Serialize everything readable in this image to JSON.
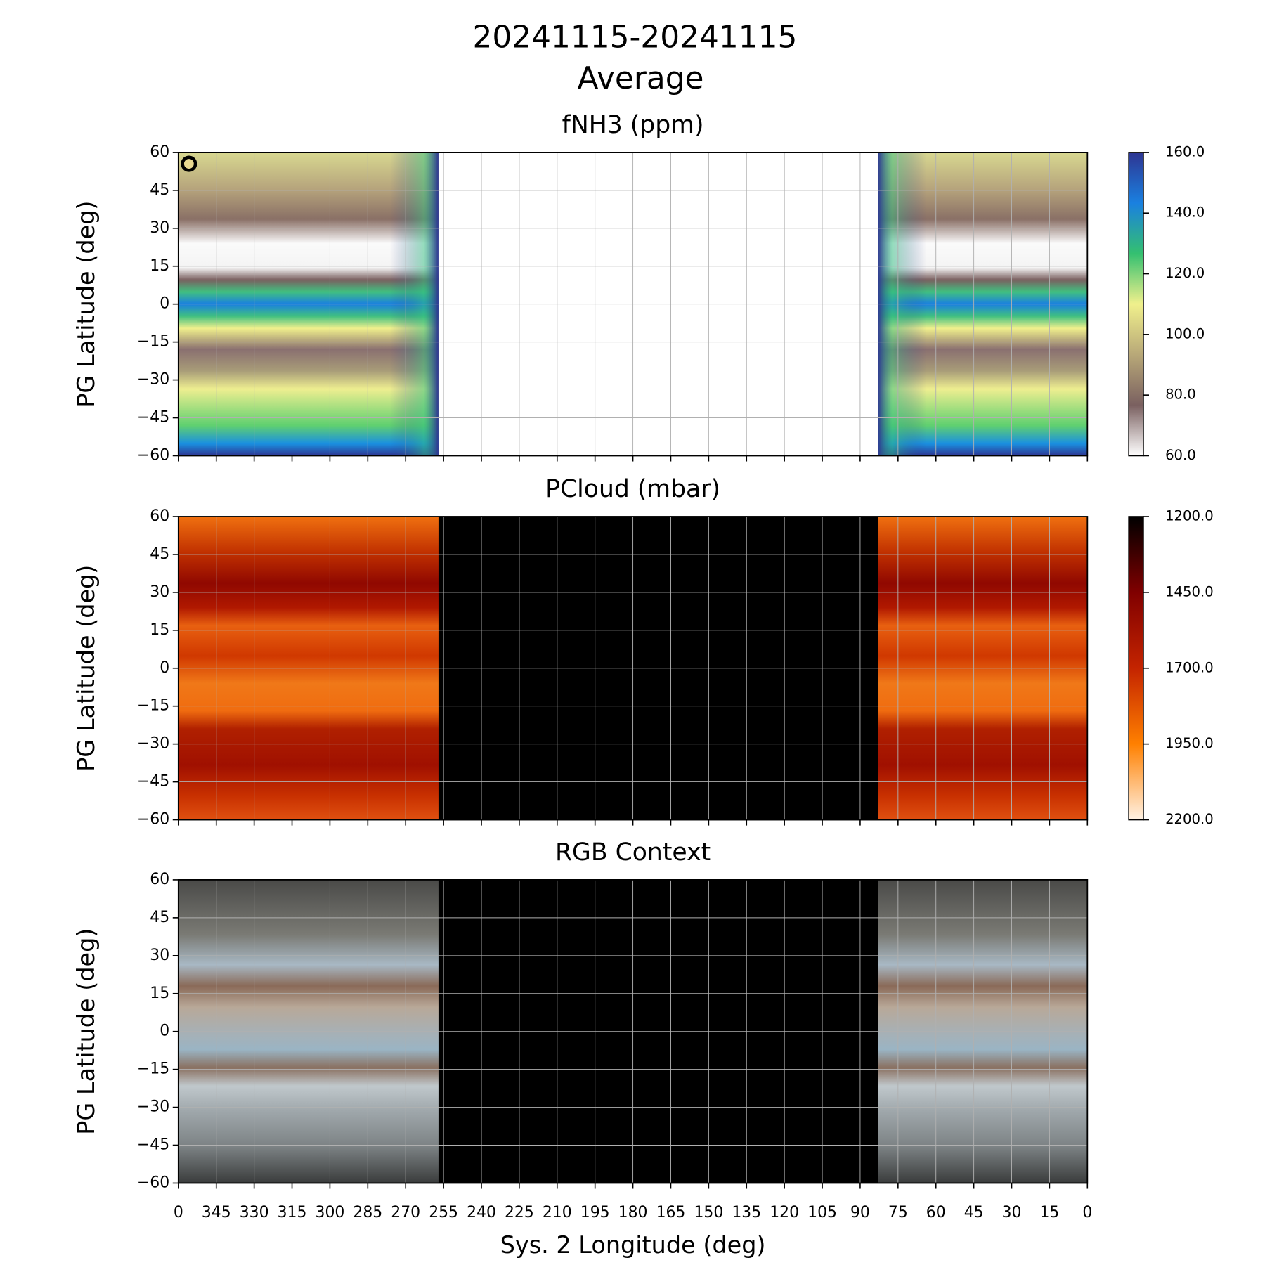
{
  "title": "20241115-20241115",
  "subtitle": "Average",
  "chart_data": [
    {
      "type": "heatmap",
      "title": "fNH3 (ppm)",
      "ylabel": "PG Latitude (deg)",
      "background": "#ffffff",
      "grid": true,
      "coverage": [
        [
          360,
          257
        ],
        [
          83,
          0
        ]
      ],
      "ylim": [
        -60,
        60
      ],
      "yticks": [
        {
          "value": -60,
          "label": "−60"
        },
        {
          "value": -45,
          "label": "−45"
        },
        {
          "value": -30,
          "label": "−30"
        },
        {
          "value": -15,
          "label": "−15"
        },
        0,
        15,
        30,
        45,
        60
      ],
      "colorbar": {
        "clim": [
          60,
          160
        ],
        "colors": [
          "#ffffff",
          "#7a6060",
          "#b8a878",
          "#f0f08c",
          "#34c070",
          "#1a80e0",
          "#2e3592"
        ],
        "ticks": [
          {
            "value": 60,
            "label": "60.0"
          },
          {
            "value": 80,
            "label": "80.0"
          },
          {
            "value": 100,
            "label": "100.0"
          },
          {
            "value": 120,
            "label": "120.0"
          },
          {
            "value": 140,
            "label": "140.0"
          },
          {
            "value": 160,
            "label": "160.0"
          }
        ]
      }
    },
    {
      "type": "heatmap",
      "title": "PCloud (mbar)",
      "ylabel": "PG Latitude (deg)",
      "background": "#000000",
      "grid": true,
      "coverage": [
        [
          360,
          257
        ],
        [
          83,
          0
        ]
      ],
      "ylim": [
        -60,
        60
      ],
      "yticks": [
        {
          "value": -60,
          "label": "−60"
        },
        {
          "value": -45,
          "label": "−45"
        },
        {
          "value": -30,
          "label": "−30"
        },
        {
          "value": -15,
          "label": "−15"
        },
        0,
        15,
        30,
        45,
        60
      ],
      "colorbar": {
        "clim": [
          2200,
          1200
        ],
        "colors": [
          "#fff2e4",
          "#ff8000",
          "#c42400",
          "#800000",
          "#000000"
        ],
        "ticks": [
          {
            "value": 2200,
            "label": "2200.0"
          },
          {
            "value": 1950,
            "label": "1950.0"
          },
          {
            "value": 1700,
            "label": "1700.0"
          },
          {
            "value": 1450,
            "label": "1450.0"
          },
          {
            "value": 1200,
            "label": "1200.0"
          }
        ]
      }
    },
    {
      "type": "image",
      "title": "RGB Context",
      "ylabel": "PG Latitude (deg)",
      "xlabel": "Sys. 2 Longitude (deg)",
      "background": "#000000",
      "grid": true,
      "coverage": [
        [
          360,
          257
        ],
        [
          83,
          0
        ]
      ],
      "xlim": [
        360,
        0
      ],
      "xticks": [
        {
          "value": 360,
          "label": "0"
        },
        345,
        330,
        315,
        300,
        285,
        270,
        255,
        240,
        225,
        210,
        195,
        180,
        165,
        150,
        135,
        120,
        105,
        90,
        75,
        60,
        45,
        30,
        15,
        0
      ],
      "ylim": [
        -60,
        60
      ],
      "yticks": [
        {
          "value": -60,
          "label": "−60"
        },
        {
          "value": -45,
          "label": "−45"
        },
        {
          "value": -30,
          "label": "−30"
        },
        {
          "value": -15,
          "label": "−15"
        },
        0,
        15,
        30,
        45,
        60
      ]
    }
  ]
}
